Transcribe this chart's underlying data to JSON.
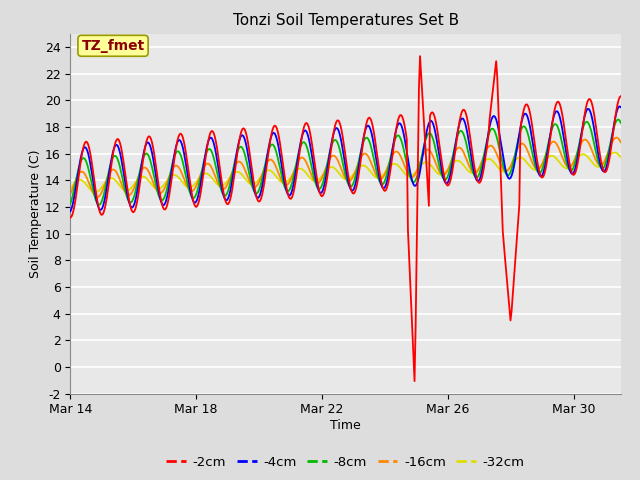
{
  "title": "Tonzi Soil Temperatures Set B",
  "xlabel": "Time",
  "ylabel": "Soil Temperature (C)",
  "annotation_text": "TZ_fmet",
  "annotation_color": "#8B0000",
  "annotation_bg": "#FFFF99",
  "ylim": [
    -2,
    25
  ],
  "bg_color": "#E0E0E0",
  "plot_bg": "#E8E8E8",
  "grid_color": "#FFFFFF",
  "colors": {
    "-2cm": "#FF0000",
    "-4cm": "#0000FF",
    "-8cm": "#00BB00",
    "-16cm": "#FF8800",
    "-32cm": "#DDDD00"
  },
  "legend_labels": [
    "-2cm",
    "-4cm",
    "-8cm",
    "-16cm",
    "-32cm"
  ],
  "x_tick_labels": [
    "Mar 14",
    "Mar 18",
    "Mar 22",
    "Mar 26",
    "Mar 30"
  ],
  "x_tick_positions": [
    0,
    4,
    8,
    12,
    16
  ]
}
